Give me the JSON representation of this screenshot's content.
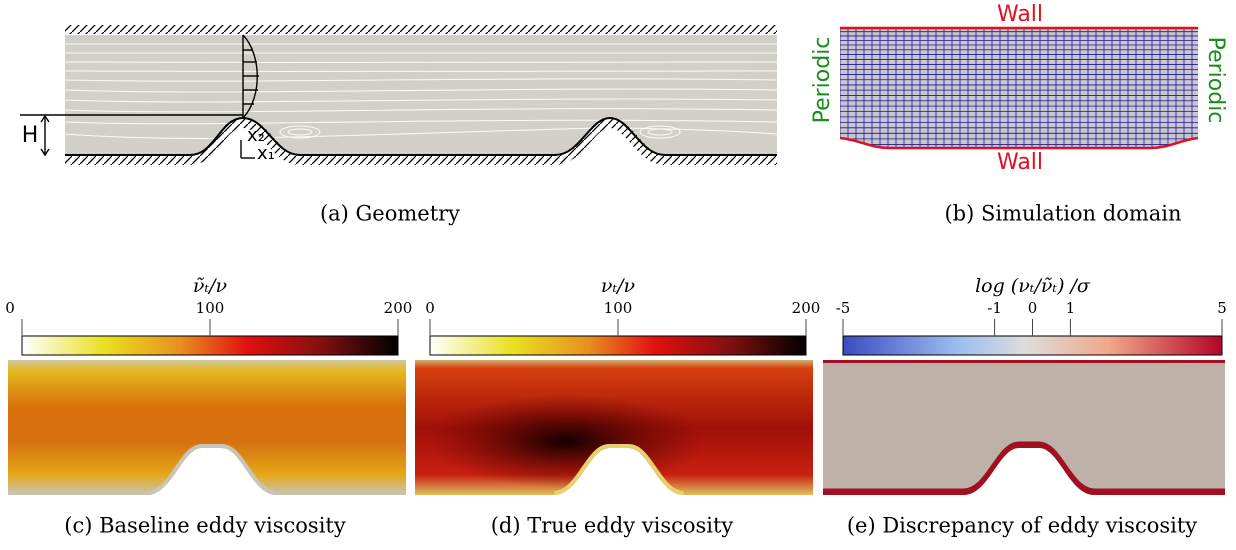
{
  "panels": [
    {
      "caption": "(a) Geometry",
      "labels": {
        "height": "H",
        "x2": "x₂",
        "x1": "x₁"
      }
    },
    {
      "caption": "(b) Simulation domain",
      "labels": {
        "top": "Wall",
        "bottom": "Wall",
        "left": "Periodic",
        "right": "Periodic"
      }
    },
    {
      "caption": "(c) Baseline eddy viscosity",
      "colorbar": {
        "title": "ν̃ₜ/ν",
        "lim": [
          0,
          200
        ],
        "ticks": [
          0,
          100,
          200
        ]
      }
    },
    {
      "caption": "(d) True eddy viscosity",
      "colorbar": {
        "title": "νₜ/ν",
        "lim": [
          0,
          200
        ],
        "ticks": [
          0,
          100,
          200
        ]
      }
    },
    {
      "caption": "(e) Discrepancy of eddy viscosity",
      "colorbar": {
        "title": "log (νₜ/ν̃ₜ) /σ",
        "lim": [
          -5,
          5
        ],
        "ticks": [
          -5,
          -1,
          0,
          1,
          5
        ]
      }
    }
  ]
}
